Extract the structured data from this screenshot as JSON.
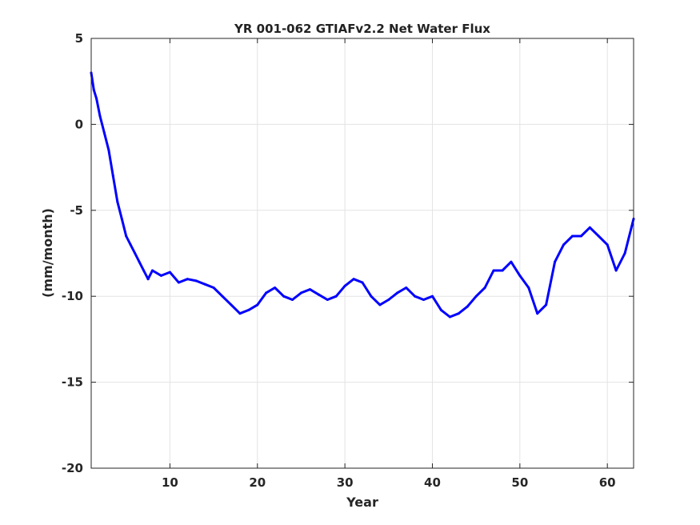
{
  "chart_data": {
    "type": "line",
    "title": "YR 001-062 GTIAFv2.2 Net Water Flux",
    "xlabel": "Year",
    "ylabel": "(mm/month)",
    "xlim": [
      1,
      63
    ],
    "ylim": [
      -20,
      5
    ],
    "xticks": [
      10,
      20,
      30,
      40,
      50,
      60
    ],
    "yticks": [
      5,
      0,
      -5,
      -10,
      -15,
      -20
    ],
    "grid": true,
    "legend": "none",
    "series": [
      {
        "color": "#0000ff",
        "x": [
          1.0,
          1.3,
          1.6,
          2.0,
          2.5,
          3.0,
          3.5,
          4.0,
          4.5,
          5.0,
          5.5,
          6.0,
          6.5,
          7.0,
          7.5,
          8.0,
          9.0,
          10.0,
          11.0,
          12.0,
          13.0,
          14.0,
          15.0,
          16.0,
          17.0,
          18.0,
          19.0,
          20.0,
          21.0,
          22.0,
          23.0,
          24.0,
          25.0,
          26.0,
          27.0,
          28.0,
          29.0,
          30.0,
          31.0,
          32.0,
          33.0,
          34.0,
          35.0,
          36.0,
          37.0,
          38.0,
          39.0,
          40.0,
          41.0,
          42.0,
          43.0,
          44.0,
          45.0,
          46.0,
          47.0,
          48.0,
          49.0,
          50.0,
          51.0,
          52.0,
          53.0,
          54.0,
          55.0,
          56.0,
          57.0,
          58.0,
          59.0,
          60.0,
          61.0,
          62.0,
          63.0
        ],
        "y": [
          3.0,
          2.0,
          1.5,
          0.5,
          -0.5,
          -1.5,
          -3.0,
          -4.5,
          -5.5,
          -6.5,
          -7.0,
          -7.5,
          -8.0,
          -8.5,
          -9.0,
          -8.5,
          -8.8,
          -8.6,
          -9.2,
          -9.0,
          -9.1,
          -9.3,
          -9.5,
          -10.0,
          -10.5,
          -11.0,
          -10.8,
          -10.5,
          -9.8,
          -9.5,
          -10.0,
          -10.2,
          -9.8,
          -9.6,
          -9.9,
          -10.2,
          -10.0,
          -9.4,
          -9.0,
          -9.2,
          -10.0,
          -10.5,
          -10.2,
          -9.8,
          -9.5,
          -10.0,
          -10.2,
          -10.0,
          -10.8,
          -11.2,
          -11.0,
          -10.6,
          -10.0,
          -9.5,
          -8.5,
          -8.5,
          -8.0,
          -8.8,
          -9.5,
          -11.0,
          -10.5,
          -8.0,
          -7.0,
          -6.5,
          -6.5,
          -6.0,
          -6.5,
          -7.0,
          -8.5,
          -7.5,
          -5.5
        ]
      }
    ]
  }
}
